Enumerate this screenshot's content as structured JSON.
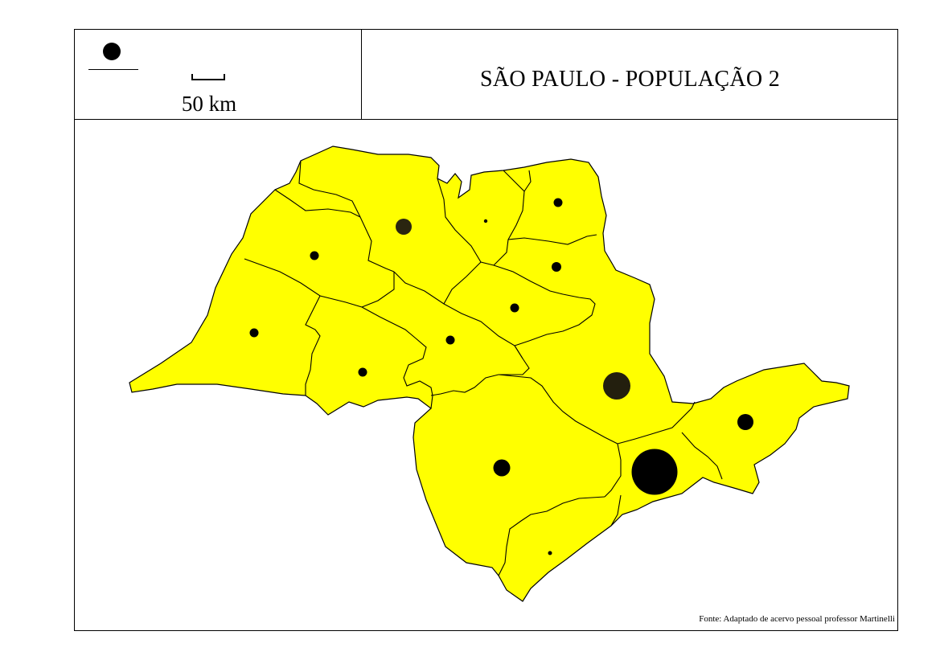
{
  "map": {
    "title": "SÃO PAULO - POPULAÇÃO 2",
    "scale_label": "50 km",
    "source": "Fonte: Adaptado de acervo pessoal professor Martinelli",
    "fill_color": "#ffff00",
    "border_color": "#000000",
    "symbol_color": "#000000",
    "legend_symbol": "filled-circle",
    "region_count": 15
  }
}
